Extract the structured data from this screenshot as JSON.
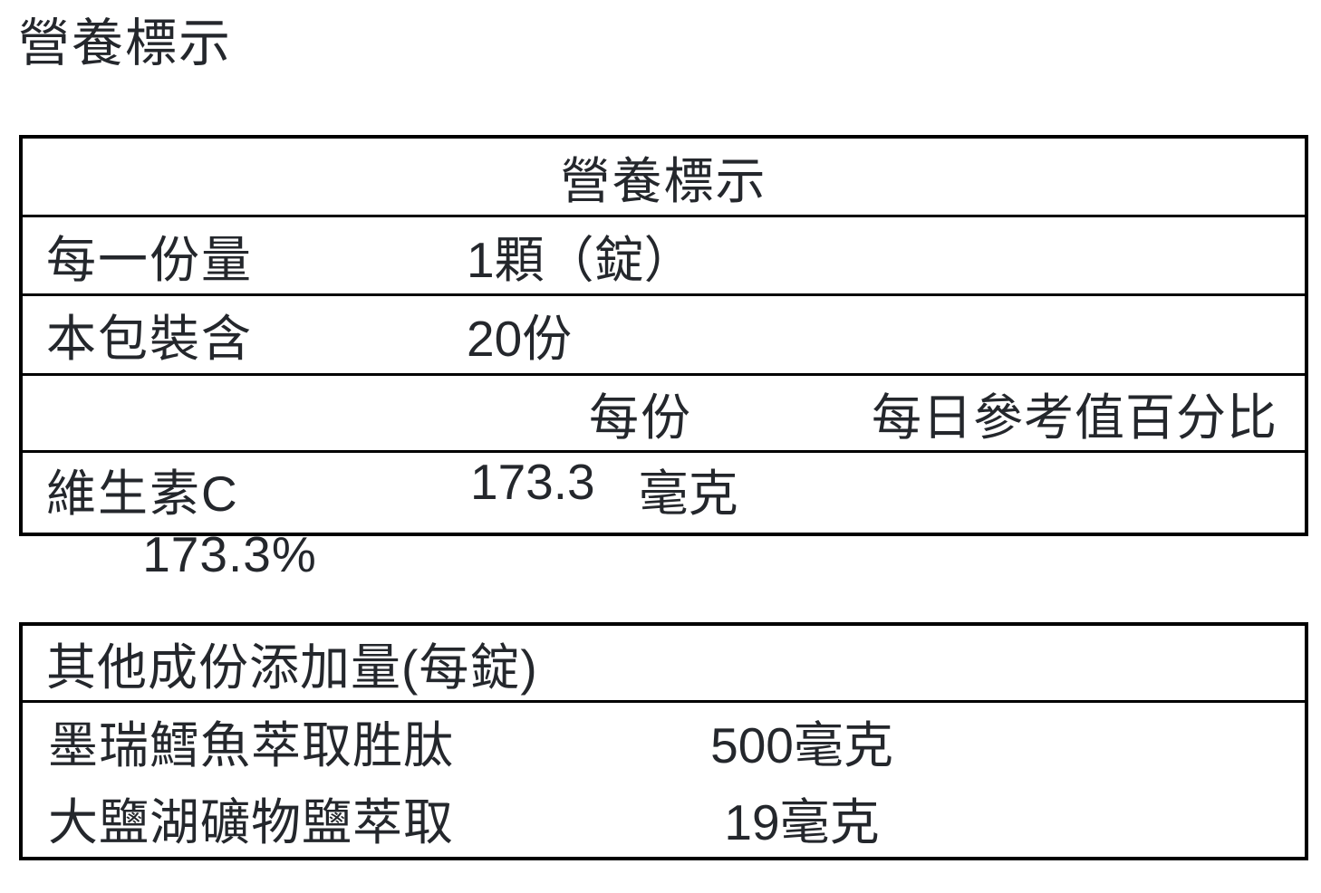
{
  "page_title": "營養標示",
  "nutrition_table": {
    "title": "營養標示",
    "serving_size_label": "每一份量",
    "serving_size_value": "1顆（錠）",
    "servings_label": "本包裝含",
    "servings_value": "20份",
    "per_serving_header": "每份",
    "daily_value_header": "每日參考值百分比",
    "rows": [
      {
        "name": "維生素C",
        "amount": "173.3",
        "unit": "毫克",
        "daily_value": "173.3%"
      }
    ]
  },
  "other_ingredients_table": {
    "title": "其他成份添加量(每錠)",
    "rows": [
      {
        "name": "墨瑞鱈魚萃取胜肽",
        "amount": "500毫克"
      },
      {
        "name": "大鹽湖礦物鹽萃取",
        "amount": "19毫克"
      }
    ]
  }
}
